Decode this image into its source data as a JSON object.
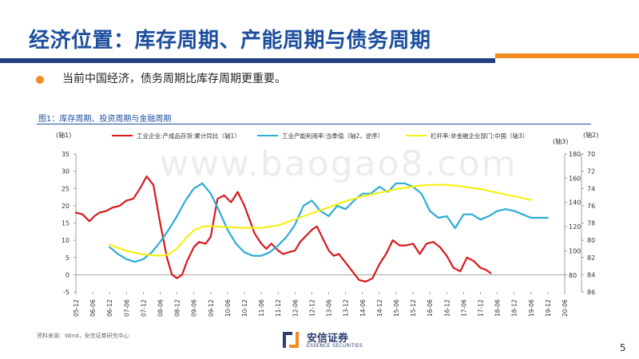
{
  "slide": {
    "title": "经济位置：库存周期、产能周期与债务周期",
    "bullet": "当前中国经济，债务周期比库存周期更重要。",
    "figure_caption": "图1：库存周期、投资周期与金融周期",
    "source": "资料来源：Wind，安信证券研究中心",
    "page_number": "5",
    "watermark": "www.baogao8.com",
    "logo_text": "安信证券",
    "logo_subtext": "ESSENCE SECURITIES",
    "colors": {
      "title": "#1d4f9e",
      "bar_blue": "#1f3f7f",
      "bar_orange": "#f28c1a"
    }
  },
  "chart_data": {
    "type": "line",
    "axis1_label": "(轴1)",
    "axis2_label": "(轴2)",
    "axis3_label": "(轴3)",
    "y1_ticks": [
      -5,
      0,
      5,
      10,
      15,
      20,
      25,
      30,
      35
    ],
    "y1_lim": [
      -5,
      35
    ],
    "y2_ticks": [
      70,
      72,
      74,
      76,
      78,
      80,
      82,
      84,
      86
    ],
    "y2_lim": [
      70,
      86
    ],
    "y2_inverted": true,
    "y3_ticks": [
      80,
      100,
      120,
      140,
      160,
      180
    ],
    "y3_lim": [
      66,
      180
    ],
    "x_ticks": [
      "05-12",
      "06-06",
      "06-12",
      "07-06",
      "07-12",
      "08-06",
      "08-12",
      "09-06",
      "09-12",
      "10-06",
      "10-12",
      "11-06",
      "11-12",
      "12-06",
      "12-12",
      "13-06",
      "13-12",
      "14-06",
      "14-12",
      "15-06",
      "15-12",
      "16-06",
      "16-12",
      "17-06",
      "17-12",
      "18-06",
      "18-12",
      "19-06",
      "19-12",
      "20-06"
    ],
    "legend": [
      {
        "name": "工业企业:产成品存货:累计同比（轴1）",
        "color": "#d7191c"
      },
      {
        "name": "工业产能利用率:当季值（轴2，逆序）",
        "color": "#2cacd6"
      },
      {
        "name": "杠杆率:非金融企业部门:中国（轴3）",
        "color": "#f5f015"
      }
    ],
    "series": [
      {
        "name": "工业企业:产成品存货:累计同比（轴1）",
        "axis": "y1",
        "color": "#d7191c",
        "x": [
          0,
          0.4,
          0.8,
          1.1,
          1.4,
          1.8,
          2.2,
          2.6,
          3.0,
          3.4,
          3.8,
          4.2,
          4.6,
          5.0,
          5.4,
          5.7,
          6.0,
          6.3,
          6.6,
          7.0,
          7.3,
          7.7,
          8.0,
          8.4,
          8.8,
          9.2,
          9.6,
          10.0,
          10.3,
          10.6,
          11.0,
          11.3,
          11.6,
          12.0,
          12.3,
          12.6,
          13.0,
          13.3,
          13.6,
          14.0,
          14.3,
          14.6,
          15.0,
          15.3,
          15.6,
          16.0,
          16.4,
          16.8,
          17.2,
          17.6,
          18.0,
          18.4,
          18.8,
          19.2,
          19.6,
          20.0,
          20.4,
          20.8,
          21.2,
          21.6,
          22.0,
          22.4,
          22.8,
          23.2,
          23.6,
          24.0,
          24.3,
          24.6,
          25.0,
          25.3,
          25.6,
          26.0,
          26.3,
          26.6,
          26.9,
          27.2,
          27.5,
          27.8,
          28.1
        ],
        "values": [
          18,
          17.5,
          15.5,
          17,
          18,
          18.5,
          19.5,
          20,
          21.5,
          22,
          25,
          28.5,
          26,
          15,
          5,
          0,
          -1,
          0,
          4,
          8,
          9.5,
          9,
          11,
          22,
          23,
          21,
          24,
          20,
          16,
          12,
          9,
          7.5,
          9,
          7,
          6,
          6.5,
          7,
          9.5,
          11,
          13,
          14,
          11,
          7,
          5.5,
          6,
          3.5,
          1,
          -1.5,
          -2,
          -1,
          3,
          6,
          10,
          8.5,
          8.5,
          9,
          6,
          9,
          9.5,
          8,
          5.5,
          2,
          1,
          5,
          4,
          2,
          1.5,
          0.5,
          null,
          null,
          null,
          null,
          null,
          null,
          null,
          null,
          null,
          null,
          null
        ]
      },
      {
        "name": "工业产能利用率:当季值（轴2，逆序）",
        "axis": "y2",
        "color": "#2cacd6",
        "x": [
          2.0,
          2.5,
          3.0,
          3.5,
          4.0,
          4.5,
          5.0,
          5.5,
          6.0,
          6.5,
          7.0,
          7.5,
          8.0,
          8.5,
          9.0,
          9.5,
          10.0,
          10.5,
          11.0,
          11.5,
          12.0,
          12.5,
          13.0,
          13.5,
          14.0,
          14.5,
          15.0,
          15.5,
          16.0,
          16.5,
          17.0,
          17.5,
          18.0,
          18.5,
          19.0,
          19.5,
          20.0,
          20.5,
          21.0,
          21.5,
          22.0,
          22.5,
          23.0,
          23.5,
          24.0,
          24.5,
          25.0,
          25.5,
          26.0,
          26.5,
          27.0,
          27.5,
          28.0
        ],
        "values": [
          80.8,
          81.6,
          82.2,
          82.5,
          82.2,
          81.4,
          80.2,
          78.8,
          77.2,
          75.4,
          74.0,
          73.4,
          74.6,
          76.6,
          78.8,
          80.4,
          81.4,
          81.8,
          81.8,
          81.4,
          80.6,
          79.6,
          78.2,
          76.0,
          75.4,
          76.6,
          77.2,
          76.0,
          76.4,
          75.4,
          74.6,
          74.6,
          73.8,
          74.4,
          73.4,
          73.4,
          73.8,
          74.6,
          76.6,
          77.4,
          77.2,
          78.6,
          77.0,
          77.0,
          77.6,
          77.2,
          76.6,
          76.4,
          76.6,
          77.0,
          77.4,
          77.4,
          77.4
        ]
      },
      {
        "name": "杠杆率:非金融企业部门:中国（轴3）",
        "axis": "y3",
        "color": "#f5f015",
        "x": [
          2.0,
          3.0,
          4.0,
          5.0,
          5.5,
          6.0,
          6.5,
          7.0,
          7.5,
          8.0,
          8.5,
          9.0,
          10.0,
          11.0,
          12.0,
          13.0,
          14.0,
          15.0,
          16.0,
          17.0,
          18.0,
          19.0,
          20.0,
          20.5,
          21.0,
          21.5,
          22.0,
          22.5,
          23.0,
          24.0,
          25.0,
          26.0,
          27.0
        ],
        "values": [
          105,
          100,
          97,
          96,
          97,
          102,
          110,
          117,
          120,
          120.5,
          120,
          119.5,
          119,
          119,
          121,
          126,
          131,
          136,
          141,
          145,
          148,
          151,
          153,
          154,
          154.5,
          154.5,
          154.5,
          154,
          153,
          151,
          148,
          145,
          142
        ]
      }
    ]
  }
}
